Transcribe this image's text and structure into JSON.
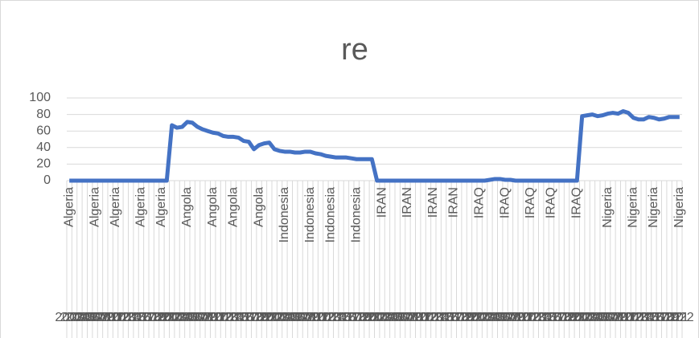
{
  "chart_data": {
    "type": "line",
    "title": "re",
    "categories": [
      "Algeria",
      null,
      null,
      null,
      null,
      "Algeria",
      null,
      null,
      null,
      "Algeria",
      null,
      null,
      null,
      null,
      "Algeria",
      null,
      null,
      null,
      "Algeria",
      null,
      null,
      null,
      null,
      "Angola",
      null,
      null,
      null,
      null,
      "Angola",
      null,
      null,
      null,
      "Angola",
      null,
      null,
      null,
      null,
      "Angola",
      null,
      null,
      null,
      null,
      "Indonesia",
      null,
      null,
      null,
      null,
      "Indonesia",
      null,
      null,
      null,
      "Indonesia",
      null,
      null,
      null,
      null,
      "Indonesia",
      null,
      null,
      null,
      null,
      "IRAN",
      null,
      null,
      null,
      null,
      "IRAN",
      null,
      null,
      null,
      null,
      "IRAN",
      null,
      null,
      null,
      "IRAN",
      null,
      null,
      null,
      null,
      "IRAQ",
      null,
      null,
      null,
      null,
      "IRAQ",
      null,
      null,
      null,
      null,
      "IRAQ",
      null,
      null,
      null,
      "IRAQ",
      null,
      null,
      null,
      null,
      "IRAQ",
      null,
      null,
      null,
      null,
      null,
      "Nigeria",
      null,
      null,
      null,
      null,
      "Nigeria",
      null,
      null,
      null,
      "Nigeria",
      null,
      null,
      null,
      null,
      "Nigeria"
    ],
    "years": [
      2003,
      2004,
      2005,
      2006,
      2007,
      2008,
      2009,
      2010,
      2011,
      2012,
      2013,
      2014,
      2015,
      2016,
      2017,
      2018,
      2019,
      2020,
      2021,
      2022,
      2003,
      2004,
      2005,
      2006,
      2007,
      2008,
      2009,
      2010,
      2011,
      2012,
      2013,
      2014,
      2015,
      2016,
      2017,
      2018,
      2019,
      2020,
      2021,
      2022,
      2003,
      2004,
      2005,
      2006,
      2007,
      2008,
      2009,
      2010,
      2011,
      2012,
      2013,
      2014,
      2015,
      2016,
      2017,
      2018,
      2019,
      2020,
      2021,
      2022,
      2003,
      2004,
      2005,
      2006,
      2007,
      2008,
      2009,
      2010,
      2011,
      2012,
      2013,
      2014,
      2015,
      2016,
      2017,
      2018,
      2019,
      2020,
      2021,
      2022,
      2003,
      2004,
      2005,
      2006,
      2007,
      2008,
      2009,
      2010,
      2011,
      2012,
      2013,
      2014,
      2015,
      2016,
      2017,
      2018,
      2019,
      2020,
      2021,
      2022,
      2003,
      2004,
      2005,
      2006,
      2007,
      2008,
      2009,
      2010,
      2011,
      2012,
      2013,
      2014,
      2015,
      2016,
      2017,
      2018,
      2019,
      2020,
      2021,
      2022
    ],
    "series": [
      {
        "name": "re",
        "color": "#4472c4",
        "values": [
          0,
          0,
          0,
          0,
          0,
          0,
          0,
          0,
          0,
          0,
          0,
          0,
          0,
          0,
          0,
          0,
          0,
          0,
          0,
          0,
          67,
          64,
          65,
          71,
          70,
          65,
          62,
          60,
          58,
          57,
          54,
          53,
          53,
          52,
          48,
          47,
          38,
          43,
          45,
          46,
          38,
          36,
          35,
          35,
          34,
          34,
          35,
          35,
          33,
          32,
          30,
          29,
          28,
          28,
          28,
          27,
          26,
          26,
          26,
          26,
          0,
          0,
          0,
          0,
          0,
          0,
          0,
          0,
          0,
          0,
          0,
          0,
          0,
          0,
          0,
          0,
          0,
          0,
          0,
          0,
          0,
          0,
          1,
          2,
          2,
          1,
          1,
          0,
          0,
          0,
          0,
          0,
          0,
          0,
          0,
          0,
          0,
          0,
          0,
          0,
          78,
          79,
          80,
          78,
          79,
          81,
          82,
          81,
          84,
          82,
          76,
          74,
          74,
          77,
          76,
          74,
          75,
          77,
          77,
          77
        ]
      }
    ],
    "ylim": [
      0,
      100
    ],
    "yticks": [
      0,
      20,
      40,
      60,
      80,
      100
    ],
    "grid": true
  }
}
